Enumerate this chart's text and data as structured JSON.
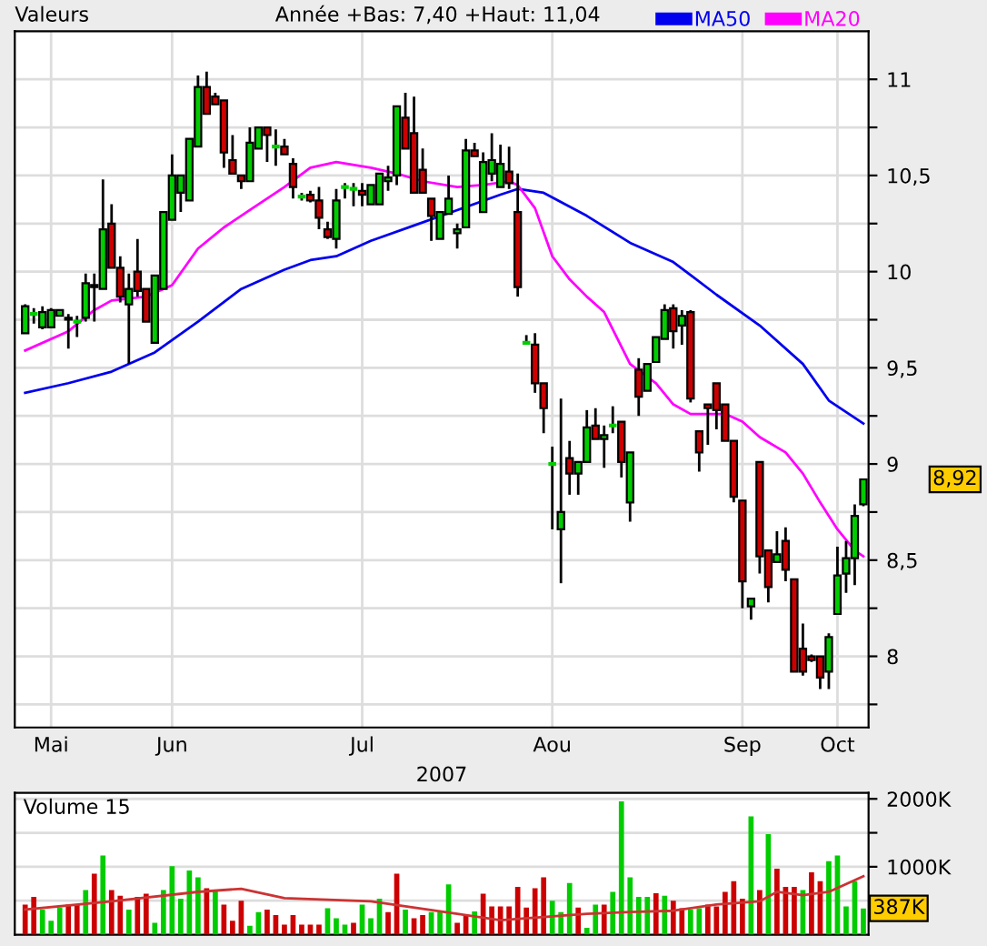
{
  "chart_data": [
    {
      "type": "candlestick",
      "title": "Valeurs",
      "subtitle": "Année +Bas: 7,40 +Haut: 11,04",
      "xlabel": "2007",
      "categories": [
        null,
        null,
        null,
        "Mai",
        null,
        null,
        null,
        null,
        null,
        null,
        null,
        null,
        null,
        null,
        null,
        null,
        null,
        "Jun",
        null,
        null,
        null,
        null,
        null,
        null,
        null,
        null,
        null,
        null,
        null,
        null,
        null,
        null,
        null,
        null,
        null,
        null,
        null,
        null,
        null,
        "Jul",
        null,
        null,
        null,
        null,
        null,
        null,
        null,
        null,
        null,
        null,
        null,
        null,
        null,
        null,
        null,
        null,
        null,
        null,
        null,
        null,
        null,
        "Aou",
        null,
        null,
        null,
        null,
        null,
        null,
        null,
        null,
        null,
        null,
        null,
        null,
        null,
        null,
        null,
        null,
        null,
        null,
        null,
        null,
        null,
        "Sep",
        null,
        null,
        null,
        null,
        null,
        null,
        null,
        null,
        null,
        null,
        "Oct",
        null,
        null,
        null
      ],
      "ohlc": [
        [
          9.68,
          9.83,
          9.68,
          9.82
        ],
        [
          9.78,
          9.81,
          9.73,
          9.78
        ],
        [
          9.71,
          9.82,
          9.7,
          9.79
        ],
        [
          9.71,
          9.81,
          9.71,
          9.8
        ],
        [
          9.77,
          9.8,
          9.77,
          9.8
        ],
        [
          9.76,
          9.78,
          9.6,
          9.75
        ],
        [
          9.74,
          9.77,
          9.66,
          9.74
        ],
        [
          9.76,
          9.99,
          9.74,
          9.94
        ],
        [
          9.93,
          9.99,
          9.74,
          9.92
        ],
        [
          9.91,
          10.48,
          9.91,
          10.22
        ],
        [
          10.25,
          10.35,
          10.02,
          10.02
        ],
        [
          10.02,
          10.08,
          9.84,
          9.87
        ],
        [
          9.83,
          9.99,
          9.52,
          9.91
        ],
        [
          10.0,
          10.17,
          9.87,
          9.9
        ],
        [
          9.91,
          9.91,
          9.74,
          9.74
        ],
        [
          9.63,
          9.98,
          9.63,
          9.98
        ],
        [
          9.91,
          10.31,
          9.91,
          10.31
        ],
        [
          10.27,
          10.61,
          10.27,
          10.5
        ],
        [
          10.41,
          10.5,
          10.31,
          10.5
        ],
        [
          10.37,
          10.69,
          10.37,
          10.69
        ],
        [
          10.65,
          11.02,
          10.65,
          10.96
        ],
        [
          10.96,
          11.04,
          10.82,
          10.82
        ],
        [
          10.91,
          10.93,
          10.87,
          10.87
        ],
        [
          10.89,
          10.89,
          10.54,
          10.62
        ],
        [
          10.58,
          10.71,
          10.51,
          10.51
        ],
        [
          10.5,
          10.5,
          10.43,
          10.47
        ],
        [
          10.47,
          10.75,
          10.47,
          10.67
        ],
        [
          10.64,
          10.75,
          10.64,
          10.75
        ],
        [
          10.75,
          10.75,
          10.57,
          10.71
        ],
        [
          10.65,
          10.74,
          10.55,
          10.65
        ],
        [
          10.65,
          10.69,
          10.61,
          10.61
        ],
        [
          10.56,
          10.59,
          10.38,
          10.44
        ],
        [
          10.39,
          10.41,
          10.37,
          10.39
        ],
        [
          10.4,
          10.42,
          10.36,
          10.37
        ],
        [
          10.37,
          10.44,
          10.22,
          10.28
        ],
        [
          10.22,
          10.26,
          10.17,
          10.18
        ],
        [
          10.17,
          10.43,
          10.12,
          10.37
        ],
        [
          10.44,
          10.46,
          10.38,
          10.44
        ],
        [
          10.43,
          10.46,
          10.34,
          10.43
        ],
        [
          10.42,
          10.46,
          10.34,
          10.4
        ],
        [
          10.35,
          10.45,
          10.35,
          10.45
        ],
        [
          10.35,
          10.51,
          10.35,
          10.51
        ],
        [
          10.47,
          10.55,
          10.42,
          10.49
        ],
        [
          10.5,
          10.86,
          10.45,
          10.86
        ],
        [
          10.8,
          10.93,
          10.64,
          10.64
        ],
        [
          10.72,
          10.91,
          10.41,
          10.41
        ],
        [
          10.53,
          10.64,
          10.41,
          10.41
        ],
        [
          10.38,
          10.38,
          10.16,
          10.29
        ],
        [
          10.17,
          10.31,
          10.17,
          10.31
        ],
        [
          10.3,
          10.5,
          10.3,
          10.38
        ],
        [
          10.2,
          10.25,
          10.12,
          10.22
        ],
        [
          10.23,
          10.69,
          10.23,
          10.63
        ],
        [
          10.63,
          10.67,
          10.6,
          10.6
        ],
        [
          10.31,
          10.62,
          10.31,
          10.57
        ],
        [
          10.51,
          10.72,
          10.47,
          10.58
        ],
        [
          10.44,
          10.66,
          10.44,
          10.56
        ],
        [
          10.52,
          10.65,
          10.43,
          10.46
        ],
        [
          10.31,
          10.51,
          9.87,
          9.92
        ],
        [
          9.63,
          9.67,
          9.62,
          9.63
        ],
        [
          9.62,
          9.68,
          9.37,
          9.42
        ],
        [
          9.42,
          9.42,
          9.16,
          9.29
        ],
        [
          9.0,
          9.09,
          8.66,
          9.0
        ],
        [
          8.66,
          9.34,
          8.38,
          8.75
        ],
        [
          9.03,
          9.12,
          8.84,
          8.95
        ],
        [
          8.95,
          9.01,
          8.84,
          9.01
        ],
        [
          9.01,
          9.28,
          9.01,
          9.19
        ],
        [
          9.2,
          9.29,
          9.13,
          9.13
        ],
        [
          9.13,
          9.2,
          8.98,
          9.15
        ],
        [
          9.2,
          9.3,
          9.16,
          9.2
        ],
        [
          9.22,
          9.22,
          8.93,
          9.01
        ],
        [
          8.8,
          9.06,
          8.7,
          9.06
        ],
        [
          9.49,
          9.55,
          9.25,
          9.35
        ],
        [
          9.38,
          9.52,
          9.38,
          9.52
        ],
        [
          9.53,
          9.66,
          9.53,
          9.66
        ],
        [
          9.65,
          9.83,
          9.65,
          9.8
        ],
        [
          9.81,
          9.83,
          9.6,
          9.69
        ],
        [
          9.72,
          9.8,
          9.62,
          9.77
        ],
        [
          9.79,
          9.8,
          9.32,
          9.34
        ],
        [
          9.17,
          9.17,
          8.96,
          9.06
        ],
        [
          9.31,
          9.31,
          9.1,
          9.29
        ],
        [
          9.42,
          9.42,
          9.18,
          9.28
        ],
        [
          9.31,
          9.31,
          9.12,
          9.12
        ],
        [
          9.12,
          9.12,
          8.8,
          8.83
        ],
        [
          8.81,
          8.81,
          8.25,
          8.39
        ],
        [
          8.26,
          8.3,
          8.19,
          8.3
        ],
        [
          9.01,
          9.01,
          8.43,
          8.52
        ],
        [
          8.55,
          8.55,
          8.28,
          8.36
        ],
        [
          8.49,
          8.65,
          8.49,
          8.53
        ],
        [
          8.6,
          8.67,
          8.39,
          8.45
        ],
        [
          8.4,
          8.4,
          7.92,
          7.92
        ],
        [
          8.04,
          8.17,
          7.9,
          7.92
        ],
        [
          8.0,
          8.01,
          7.97,
          7.98
        ],
        [
          8.0,
          8.0,
          7.83,
          7.89
        ],
        [
          7.92,
          8.12,
          7.83,
          8.1
        ],
        [
          8.22,
          8.57,
          8.22,
          8.42
        ],
        [
          8.43,
          8.6,
          8.33,
          8.51
        ],
        [
          8.51,
          8.79,
          8.37,
          8.73
        ],
        [
          8.79,
          8.92,
          8.78,
          8.92
        ]
      ],
      "colors": [
        "#00cc00",
        "#00cc00",
        "#00cc00",
        "#00cc00",
        "#00cc00",
        "#cc0000",
        "#00cc00",
        "#00cc00",
        "#cc0000",
        "#00cc00",
        "#cc0000",
        "#cc0000",
        "#00cc00",
        "#cc0000",
        "#cc0000",
        "#00cc00",
        "#00cc00",
        "#00cc00",
        "#00cc00",
        "#00cc00",
        "#00cc00",
        "#cc0000",
        "#cc0000",
        "#cc0000",
        "#cc0000",
        "#cc0000",
        "#00cc00",
        "#00cc00",
        "#cc0000",
        "#00cc00",
        "#cc0000",
        "#cc0000",
        "#00cc00",
        "#cc0000",
        "#cc0000",
        "#cc0000",
        "#00cc00",
        "#00cc00",
        "#00cc00",
        "#cc0000",
        "#00cc00",
        "#00cc00",
        "#00cc00",
        "#00cc00",
        "#cc0000",
        "#cc0000",
        "#cc0000",
        "#cc0000",
        "#00cc00",
        "#00cc00",
        "#00cc00",
        "#00cc00",
        "#cc0000",
        "#00cc00",
        "#00cc00",
        "#00cc00",
        "#cc0000",
        "#cc0000",
        "#00cc00",
        "#cc0000",
        "#cc0000",
        "#00cc00",
        "#00cc00",
        "#cc0000",
        "#00cc00",
        "#00cc00",
        "#cc0000",
        "#00cc00",
        "#00cc00",
        "#cc0000",
        "#00cc00",
        "#cc0000",
        "#00cc00",
        "#00cc00",
        "#00cc00",
        "#cc0000",
        "#00cc00",
        "#cc0000",
        "#cc0000",
        "#cc0000",
        "#cc0000",
        "#cc0000",
        "#cc0000",
        "#cc0000",
        "#00cc00",
        "#cc0000",
        "#cc0000",
        "#00cc00",
        "#cc0000",
        "#cc0000",
        "#cc0000",
        "#cc0000",
        "#cc0000",
        "#00cc00",
        "#00cc00",
        "#00cc00",
        "#00cc00",
        "#00cc00"
      ],
      "series": [
        {
          "name": "MA50",
          "type": "line",
          "color": "#0000ee",
          "values": [
            9.37,
            null,
            null,
            null,
            null,
            9.42,
            null,
            null,
            null,
            null,
            9.48,
            null,
            null,
            null,
            null,
            9.58,
            null,
            null,
            null,
            null,
            9.74,
            null,
            null,
            null,
            null,
            9.91,
            null,
            null,
            null,
            null,
            10.01,
            null,
            null,
            10.06,
            null,
            null,
            10.08,
            null,
            null,
            null,
            10.16,
            null,
            null,
            null,
            null,
            10.24,
            null,
            null,
            null,
            null,
            10.32,
            null,
            null,
            null,
            null,
            10.4,
            null,
            10.43,
            null,
            null,
            10.41,
            null,
            null,
            null,
            null,
            10.29,
            null,
            null,
            null,
            null,
            10.15,
            null,
            null,
            null,
            null,
            10.05,
            null,
            null,
            null,
            null,
            9.88,
            null,
            null,
            null,
            null,
            9.72,
            null,
            null,
            null,
            null,
            9.52,
            null,
            null,
            9.33,
            null,
            null,
            null,
            9.21
          ]
        },
        {
          "name": "MA20",
          "type": "line",
          "color": "#ff00ff",
          "values": [
            9.59,
            null,
            null,
            null,
            null,
            9.69,
            null,
            null,
            9.8,
            null,
            9.85,
            null,
            null,
            null,
            9.87,
            null,
            null,
            9.93,
            null,
            null,
            10.12,
            null,
            null,
            10.23,
            null,
            null,
            10.32,
            null,
            null,
            null,
            10.44,
            null,
            null,
            10.54,
            null,
            null,
            10.57,
            null,
            null,
            null,
            10.54,
            null,
            null,
            10.51,
            null,
            null,
            10.47,
            null,
            null,
            null,
            10.44,
            null,
            null,
            10.45,
            null,
            null,
            10.47,
            10.45,
            null,
            10.33,
            null,
            10.08,
            null,
            9.96,
            null,
            9.87,
            null,
            9.79,
            null,
            null,
            9.52,
            null,
            null,
            9.42,
            null,
            9.31,
            null,
            9.26,
            null,
            9.26,
            null,
            9.26,
            null,
            9.22,
            null,
            9.14,
            null,
            null,
            9.06,
            null,
            8.95,
            null,
            8.8,
            null,
            8.66,
            null,
            8.55,
            8.52
          ]
        }
      ],
      "ylim": [
        7.63,
        11.25
      ],
      "yticks": [
        {
          "value": 7.75,
          "label": null
        },
        8,
        {
          "value": 8.25,
          "label": null
        },
        {
          "value": 8.5,
          "label": "8,5"
        },
        {
          "value": 8.75,
          "label": null
        },
        9,
        {
          "value": 9.25,
          "label": null
        },
        {
          "value": 9.5,
          "label": "9,5"
        },
        {
          "value": 9.75,
          "label": null
        },
        10,
        {
          "value": 10.25,
          "label": null
        },
        {
          "value": 10.5,
          "label": "10,5"
        },
        {
          "value": 10.75,
          "label": null
        },
        11
      ],
      "annotations": [
        "8,92"
      ],
      "grid": true,
      "legend": "top"
    },
    {
      "type": "bar",
      "title": "Volume 15",
      "categories": [
        null,
        null,
        null,
        null,
        null,
        null,
        null,
        null,
        null,
        null,
        null,
        null,
        null,
        null,
        null,
        null,
        null,
        null,
        null,
        null,
        null,
        null,
        null,
        null,
        null,
        null,
        null,
        null,
        null,
        null,
        null,
        null,
        null,
        null,
        null,
        null,
        null,
        null,
        null,
        null,
        null,
        null,
        null,
        null,
        null,
        null,
        null,
        null,
        null,
        null,
        null,
        null,
        null,
        null,
        null,
        null,
        null,
        null,
        null,
        null,
        null,
        null,
        null,
        null,
        null,
        null,
        null,
        null,
        null,
        null,
        null,
        null,
        null,
        null,
        null,
        null,
        null,
        null,
        null,
        null,
        null,
        null,
        null,
        null,
        null,
        null,
        null,
        null,
        null,
        null,
        null,
        null,
        null,
        null,
        null,
        null,
        null,
        null
      ],
      "values": [
        444,
        556,
        370,
        204,
        398,
        444,
        444,
        657,
        898,
        1167,
        657,
        574,
        370,
        556,
        602,
        176,
        657,
        1009,
        528,
        944,
        843,
        685,
        657,
        444,
        204,
        500,
        130,
        333,
        370,
        287,
        148,
        287,
        148,
        148,
        148,
        389,
        241,
        148,
        176,
        444,
        241,
        528,
        333,
        898,
        370,
        241,
        287,
        333,
        333,
        741,
        176,
        287,
        343,
        602,
        417,
        417,
        417,
        704,
        398,
        685,
        843,
        500,
        333,
        759,
        398,
        102,
        444,
        444,
        630,
        1963,
        843,
        556,
        556,
        611,
        574,
        500,
        389,
        370,
        389,
        444,
        417,
        630,
        787,
        528,
        1741,
        657,
        1481,
        972,
        704,
        704,
        657,
        917,
        787,
        1083,
        1167,
        417,
        787,
        387
      ],
      "colors": [
        "#cc0000",
        "#cc0000",
        "#00cc00",
        "#00cc00",
        "#00cc00",
        "#cc0000",
        "#cc0000",
        "#00cc00",
        "#cc0000",
        "#00cc00",
        "#cc0000",
        "#cc0000",
        "#00cc00",
        "#cc0000",
        "#cc0000",
        "#00cc00",
        "#00cc00",
        "#00cc00",
        "#00cc00",
        "#00cc00",
        "#00cc00",
        "#cc0000",
        "#00cc00",
        "#cc0000",
        "#cc0000",
        "#cc0000",
        "#00cc00",
        "#00cc00",
        "#cc0000",
        "#cc0000",
        "#cc0000",
        "#cc0000",
        "#cc0000",
        "#cc0000",
        "#cc0000",
        "#00cc00",
        "#00cc00",
        "#00cc00",
        "#cc0000",
        "#00cc00",
        "#00cc00",
        "#00cc00",
        "#cc0000",
        "#cc0000",
        "#00cc00",
        "#cc0000",
        "#cc0000",
        "#00cc00",
        "#00cc00",
        "#00cc00",
        "#cc0000",
        "#cc0000",
        "#00cc00",
        "#cc0000",
        "#cc0000",
        "#cc0000",
        "#cc0000",
        "#cc0000",
        "#cc0000",
        "#cc0000",
        "#cc0000",
        "#00cc00",
        "#00cc00",
        "#00cc00",
        "#cc0000",
        "#00cc00",
        "#00cc00",
        "#cc0000",
        "#00cc00",
        "#00cc00",
        "#00cc00",
        "#00cc00",
        "#00cc00",
        "#cc0000",
        "#00cc00",
        "#cc0000",
        "#cc0000",
        "#00cc00",
        "#00cc00",
        "#cc0000",
        "#cc0000",
        "#cc0000",
        "#cc0000",
        "#cc0000",
        "#00cc00",
        "#cc0000",
        "#00cc00",
        "#cc0000",
        "#cc0000",
        "#cc0000",
        "#00cc00",
        "#cc0000",
        "#cc0000",
        "#00cc00",
        "#00cc00",
        "#00cc00",
        "#00cc00",
        "#00cc00"
      ],
      "series": [
        {
          "type": "line",
          "color": "#cc3333",
          "values": [
            370,
            null,
            null,
            null,
            null,
            null,
            null,
            null,
            null,
            null,
            491,
            null,
            null,
            null,
            null,
            null,
            null,
            null,
            null,
            null,
            630,
            null,
            null,
            null,
            null,
            676,
            null,
            null,
            null,
            null,
            537,
            null,
            null,
            null,
            null,
            null,
            null,
            null,
            null,
            null,
            491,
            null,
            null,
            null,
            null,
            null,
            null,
            null,
            null,
            null,
            306,
            null,
            null,
            null,
            null,
            213,
            null,
            null,
            null,
            null,
            259,
            null,
            null,
            null,
            null,
            306,
            null,
            null,
            null,
            null,
            333,
            null,
            null,
            null,
            null,
            352,
            null,
            null,
            null,
            null,
            444,
            null,
            null,
            null,
            null,
            491,
            null,
            630,
            null,
            null,
            583,
            null,
            null,
            630,
            null,
            null,
            null,
            861
          ]
        }
      ],
      "ylim": [
        0,
        2090
      ],
      "yticks": [
        {
          "value": 500,
          "label": null
        },
        {
          "value": 1000,
          "label": "1000K"
        },
        {
          "value": 1500,
          "label": null
        },
        {
          "value": 2000,
          "label": "2000K"
        }
      ],
      "annotations": [
        "387K"
      ],
      "tick_labels": "y",
      "grid": true
    }
  ]
}
